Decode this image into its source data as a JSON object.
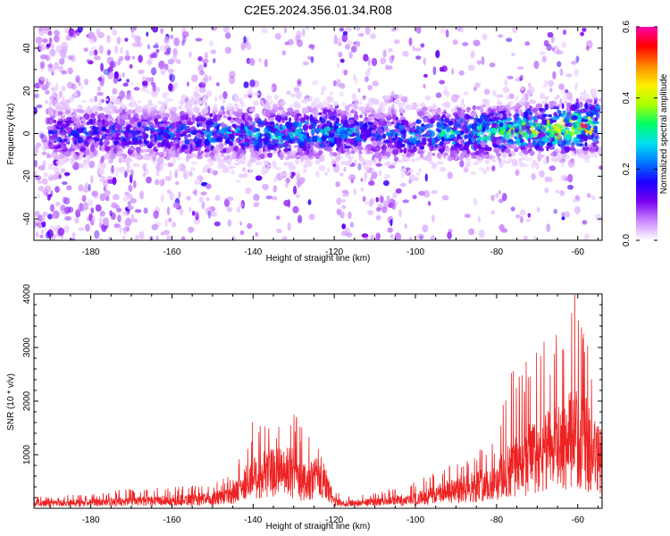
{
  "title": "C2E5.2024.356.01.34.R08",
  "chart_data": [
    {
      "type": "heatmap",
      "title": "C2E5.2024.356.01.34.R08",
      "xlabel": "Height of straight line (km)",
      "ylabel": "Frequency (Hz)",
      "xlim": [
        -194,
        -54
      ],
      "ylim": [
        -50,
        50
      ],
      "xticks": [
        -180,
        -160,
        -140,
        -120,
        -100,
        -80,
        -60
      ],
      "yticks": [
        -40,
        -20,
        0,
        20,
        40
      ],
      "colorbar": {
        "label": "Normalized spectral amplitude",
        "range": [
          0,
          0.6
        ],
        "ticks": [
          0.0,
          0.2,
          0.4,
          0.6
        ],
        "colormap": [
          "#ffffff",
          "#cc88ff",
          "#7a00f0",
          "#1a00ff",
          "#0077ff",
          "#00e0f0",
          "#00ff66",
          "#aaff00",
          "#ffee00",
          "#ff8800",
          "#ff0000",
          "#ff00aa"
        ]
      },
      "signal_band": {
        "description": "frequency band of strong amplitude",
        "x": [
          -190,
          -170,
          -150,
          -130,
          -120,
          -110,
          -90,
          -70,
          -56
        ],
        "center_hz": [
          0,
          0,
          0,
          0,
          1,
          0,
          0,
          2,
          4
        ],
        "peak_amplitude": [
          0.18,
          0.2,
          0.25,
          0.3,
          0.3,
          0.22,
          0.3,
          0.4,
          0.52
        ]
      }
    },
    {
      "type": "line",
      "xlabel": "Height of straight line (km)",
      "ylabel": "SNR (10 * v/v)",
      "xlim": [
        -194,
        -54
      ],
      "ylim": [
        0,
        4000
      ],
      "xticks": [
        -180,
        -160,
        -140,
        -120,
        -100,
        -80,
        -60
      ],
      "yticks": [
        1000,
        2000,
        3000,
        4000
      ],
      "color": "#ee2222",
      "envelope": {
        "x": [
          -194,
          -180,
          -170,
          -160,
          -150,
          -145,
          -140,
          -135,
          -130,
          -127,
          -125,
          -122,
          -120,
          -118,
          -110,
          -100,
          -95,
          -90,
          -85,
          -80,
          -77,
          -74,
          -70,
          -67,
          -64,
          -61,
          -58,
          -55
        ],
        "max": [
          230,
          260,
          380,
          400,
          450,
          650,
          1650,
          1500,
          1900,
          1400,
          1300,
          950,
          400,
          250,
          300,
          500,
          700,
          900,
          1100,
          1300,
          2500,
          2700,
          3100,
          3200,
          3450,
          4050,
          3300,
          2000
        ],
        "typical": [
          90,
          110,
          140,
          170,
          200,
          300,
          700,
          800,
          800,
          550,
          700,
          500,
          150,
          90,
          130,
          200,
          300,
          400,
          500,
          600,
          900,
          1000,
          1200,
          1300,
          1400,
          1600,
          1500,
          1100
        ]
      }
    }
  ]
}
